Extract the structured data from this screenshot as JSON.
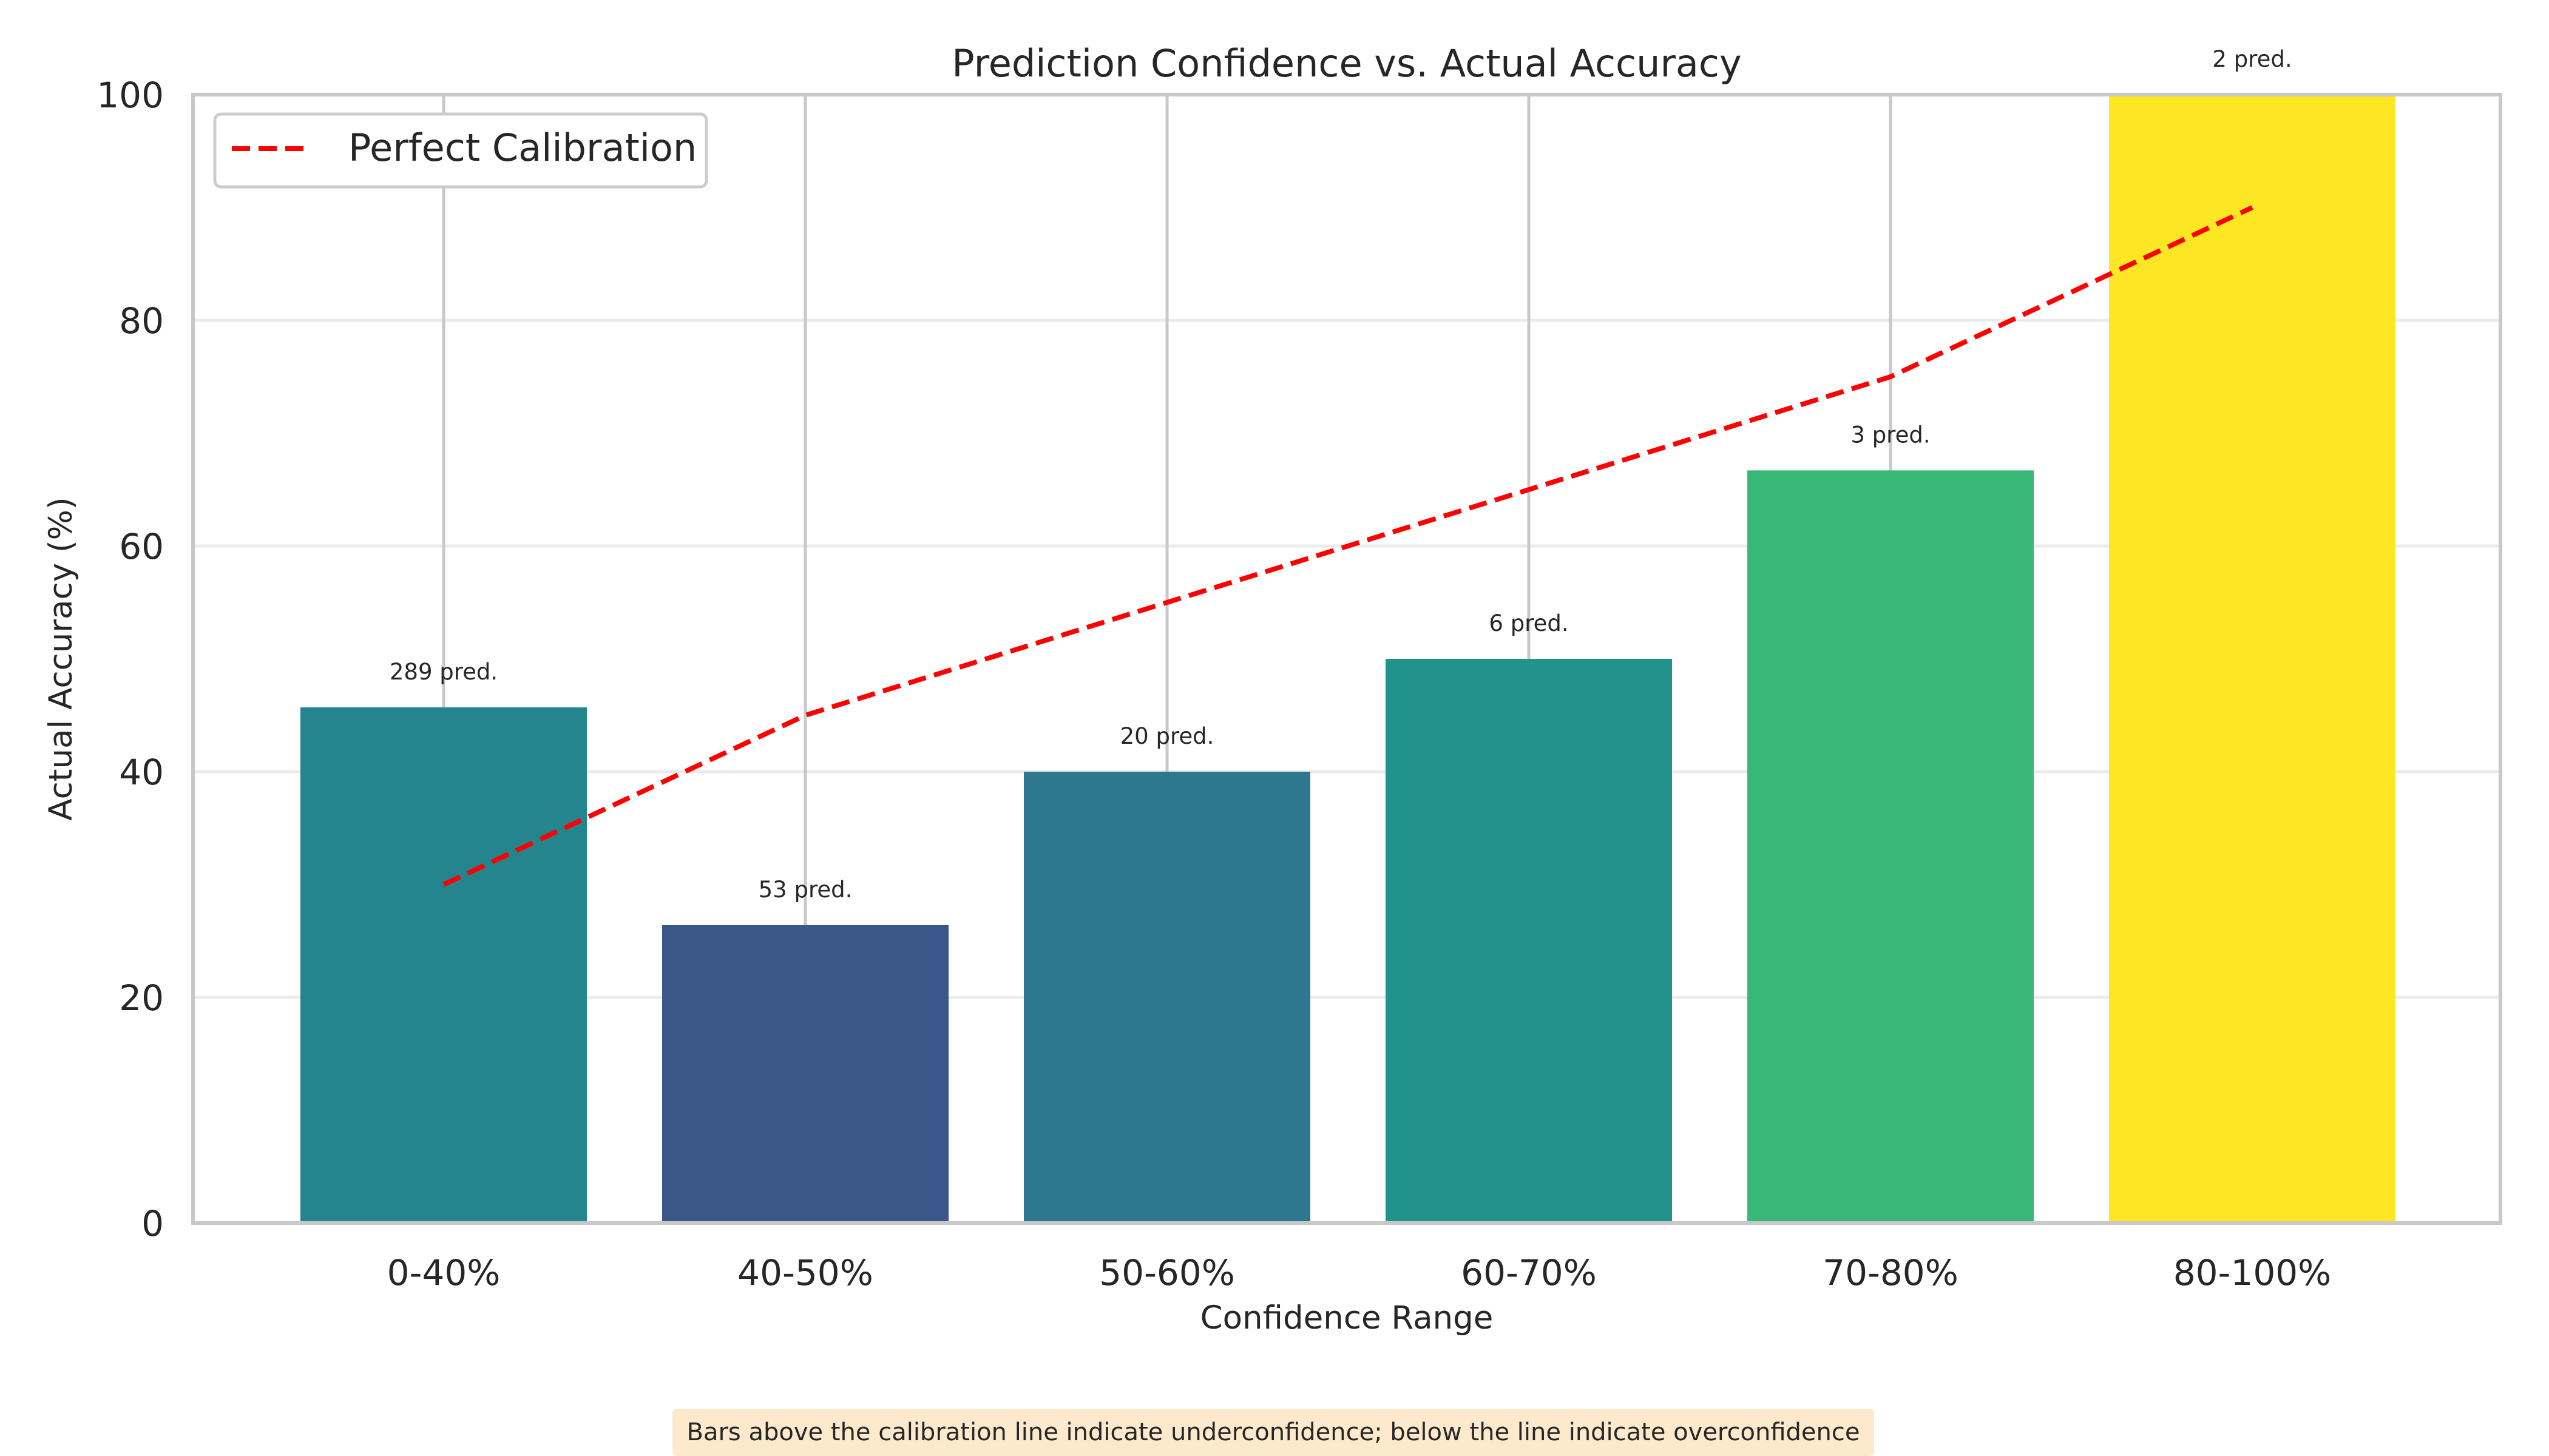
{
  "chart_data": {
    "type": "bar",
    "title": "Prediction Confidence vs. Actual Accuracy",
    "xlabel": "Confidence Range",
    "ylabel": "Actual Accuracy (%)",
    "ylim": [
      0,
      100
    ],
    "yticks": [
      0,
      20,
      40,
      60,
      80,
      100
    ],
    "grid": true,
    "categories": [
      "0-40%",
      "40-50%",
      "50-60%",
      "60-70%",
      "70-80%",
      "80-100%"
    ],
    "values": [
      45.7,
      26.4,
      40.0,
      50.0,
      66.7,
      100.0
    ],
    "counts": [
      "289 pred.",
      "53 pred.",
      "20 pred.",
      "6 pred.",
      "3 pred.",
      "2 pred."
    ],
    "bar_colors": [
      "#25858e",
      "#3b5689",
      "#2d788e",
      "#21928c",
      "#37b878",
      "#fde725"
    ],
    "lines": [
      {
        "name": "Perfect Calibration",
        "style": "dashed",
        "color": "#ff0000",
        "values": [
          30,
          45,
          55,
          65,
          75,
          90
        ]
      }
    ],
    "legend": {
      "position": "top-left",
      "entries": [
        "Perfect Calibration"
      ]
    }
  },
  "footnote": "Bars above the calibration line indicate underconfidence; below the line indicate overconfidence"
}
